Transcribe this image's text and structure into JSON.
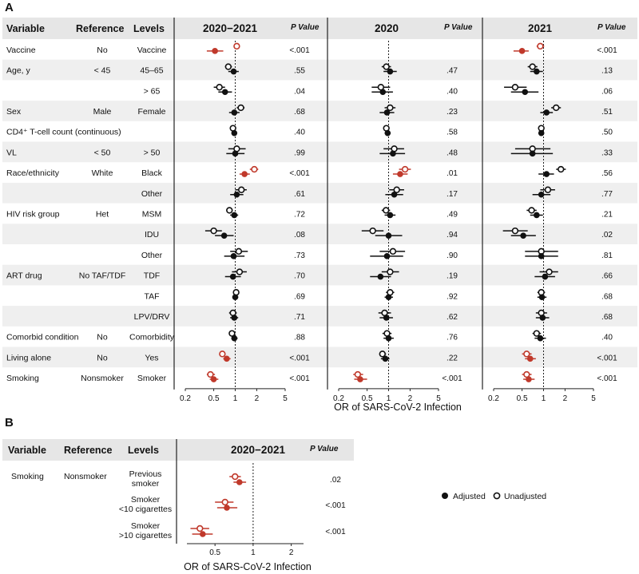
{
  "colors": {
    "significant": "#c0392b",
    "neutral": "#111111",
    "stripe": "#efefef",
    "header_bg": "#e6e6e6"
  },
  "panel_a": {
    "label": "A",
    "headers": {
      "variable": "Variable",
      "reference": "Reference",
      "levels": "Levels",
      "pvalue": "P Value"
    },
    "panel_titles": [
      "2020−2021",
      "2020",
      "2021"
    ],
    "x_axis_title": "OR of SARS-CoV-2 Infection",
    "rows": [
      {
        "variable": "Vaccine",
        "reference": "No",
        "level": "Vaccine",
        "highlight": true,
        "p": [
          "<.001",
          "",
          "<.001"
        ]
      },
      {
        "variable": "Age, y",
        "reference": "< 45",
        "level": "45–65",
        "highlight": false,
        "p": [
          ".55",
          ".47",
          ".13"
        ]
      },
      {
        "variable": "",
        "reference": "",
        "level": "> 65",
        "highlight": false,
        "p": [
          ".04",
          ".40",
          ".06"
        ]
      },
      {
        "variable": "Sex",
        "reference": "Male",
        "level": "Female",
        "highlight": false,
        "p": [
          ".68",
          ".23",
          ".51"
        ]
      },
      {
        "variable": "CD4⁺ T-cell count (continuous)",
        "reference": "",
        "level": "",
        "highlight": false,
        "p": [
          ".40",
          ".58",
          ".50"
        ]
      },
      {
        "variable": "VL",
        "reference": "< 50",
        "level": "> 50",
        "highlight": false,
        "p": [
          ".99",
          ".48",
          ".33"
        ]
      },
      {
        "variable": "Race/ethnicity",
        "reference": "White",
        "level": "Black",
        "highlight": true,
        "p": [
          "<.001",
          ".01",
          ".56"
        ]
      },
      {
        "variable": "",
        "reference": "",
        "level": "Other",
        "highlight": false,
        "p": [
          ".61",
          ".17",
          ".77"
        ]
      },
      {
        "variable": "HIV risk group",
        "reference": "Het",
        "level": "MSM",
        "highlight": false,
        "p": [
          ".72",
          ".49",
          ".21"
        ]
      },
      {
        "variable": "",
        "reference": "",
        "level": "IDU",
        "highlight": false,
        "p": [
          ".08",
          ".94",
          ".02"
        ]
      },
      {
        "variable": "",
        "reference": "",
        "level": "Other",
        "highlight": false,
        "p": [
          ".73",
          ".90",
          ".81"
        ]
      },
      {
        "variable": "ART drug",
        "reference": "No TAF/TDF",
        "level": "TDF",
        "highlight": false,
        "p": [
          ".70",
          ".19",
          ".66"
        ]
      },
      {
        "variable": "",
        "reference": "",
        "level": "TAF",
        "highlight": false,
        "p": [
          ".69",
          ".92",
          ".68"
        ]
      },
      {
        "variable": "",
        "reference": "",
        "level": "LPV/DRV",
        "highlight": false,
        "p": [
          ".71",
          ".62",
          ".68"
        ]
      },
      {
        "variable": "Comorbid condition",
        "reference": "No",
        "level": "Comorbidity",
        "highlight": false,
        "p": [
          ".88",
          ".76",
          ".40"
        ]
      },
      {
        "variable": "Living alone",
        "reference": "No",
        "level": "Yes",
        "highlight": true,
        "p": [
          "<.001",
          ".22",
          "<.001"
        ]
      },
      {
        "variable": "Smoking",
        "reference": "Nonsmoker",
        "level": "Smoker",
        "highlight": true,
        "p": [
          "<.001",
          "<.001",
          "<.001"
        ]
      }
    ]
  },
  "panel_b": {
    "label": "B",
    "headers": {
      "variable": "Variable",
      "reference": "Reference",
      "levels": "Levels",
      "pvalue": "P Value"
    },
    "panel_title": "2020−2021",
    "x_axis_title": "OR of SARS-CoV-2 Infection",
    "variable": "Smoking",
    "reference": "Nonsmoker",
    "rows": [
      {
        "level_lines": [
          "Previous",
          "smoker"
        ],
        "p": ".02"
      },
      {
        "level_lines": [
          "Smoker",
          "<10 cigarettes"
        ],
        "p": "<.001"
      },
      {
        "level_lines": [
          "Smoker",
          ">10 cigarettes"
        ],
        "p": "<.001"
      }
    ]
  },
  "legend": {
    "adjusted": "Adjusted",
    "unadjusted": "Unadjusted"
  },
  "chart_data": [
    {
      "type": "scatter",
      "subtype": "forest_plot",
      "title": "Panel A",
      "xlabel": "OR of SARS-CoV-2 Infection",
      "xscale": "log",
      "xlim": [
        0.2,
        5
      ],
      "xticks": [
        0.2,
        0.5,
        1,
        2,
        5
      ],
      "xtick_labels": [
        "0.2",
        "0.5",
        "1",
        "2",
        "5"
      ],
      "reference_line": 1,
      "categories": [
        "Vaccine",
        "Age 45–65",
        "Age >65",
        "Female",
        "CD4 count",
        "VL >50",
        "Black",
        "Race Other",
        "MSM",
        "IDU",
        "Risk Other",
        "TDF",
        "TAF",
        "LPV/DRV",
        "Comorbidity",
        "Living alone",
        "Smoker"
      ],
      "panels": [
        {
          "name": "2020−2021",
          "adjusted": [
            [
              0.52,
              0.4,
              0.68
            ],
            [
              0.95,
              0.8,
              1.12
            ],
            [
              0.72,
              0.58,
              0.9
            ],
            [
              0.97,
              0.82,
              1.15
            ],
            [
              0.97,
              0.9,
              1.05
            ],
            [
              1.0,
              0.75,
              1.35
            ],
            [
              1.35,
              1.15,
              1.6
            ],
            [
              1.05,
              0.85,
              1.3
            ],
            [
              0.97,
              0.85,
              1.1
            ],
            [
              0.7,
              0.52,
              0.95
            ],
            [
              0.95,
              0.7,
              1.35
            ],
            [
              0.93,
              0.72,
              1.2
            ],
            [
              1.0,
              0.92,
              1.1
            ],
            [
              0.97,
              0.85,
              1.1
            ],
            [
              0.97,
              0.88,
              1.08
            ],
            [
              0.76,
              0.68,
              0.86
            ],
            [
              0.5,
              0.44,
              0.58
            ]
          ],
          "unadjusted": [
            [
              1.05,
              0.95,
              1.15
            ],
            [
              0.8,
              0.72,
              0.9
            ],
            [
              0.6,
              0.5,
              0.72
            ],
            [
              1.2,
              1.05,
              1.35
            ],
            [
              0.93,
              0.88,
              0.98
            ],
            [
              1.05,
              0.8,
              1.4
            ],
            [
              1.85,
              1.6,
              2.1
            ],
            [
              1.22,
              1.0,
              1.45
            ],
            [
              0.83,
              0.75,
              0.92
            ],
            [
              0.5,
              0.38,
              0.65
            ],
            [
              1.12,
              0.85,
              1.5
            ],
            [
              1.15,
              0.9,
              1.45
            ],
            [
              1.03,
              0.95,
              1.12
            ],
            [
              0.93,
              0.82,
              1.05
            ],
            [
              0.9,
              0.82,
              0.98
            ],
            [
              0.66,
              0.6,
              0.73
            ],
            [
              0.45,
              0.4,
              0.52
            ]
          ]
        },
        {
          "name": "2020",
          "adjusted": [
            null,
            [
              1.05,
              0.85,
              1.3
            ],
            [
              0.83,
              0.58,
              1.15
            ],
            [
              0.95,
              0.75,
              1.2
            ],
            [
              0.97,
              0.88,
              1.07
            ],
            [
              1.15,
              0.75,
              1.7
            ],
            [
              1.45,
              1.15,
              1.85
            ],
            [
              1.2,
              0.9,
              1.6
            ],
            [
              1.05,
              0.88,
              1.25
            ],
            [
              1.0,
              0.65,
              1.55
            ],
            [
              0.95,
              0.55,
              1.6
            ],
            [
              0.77,
              0.55,
              1.08
            ],
            [
              1.0,
              0.88,
              1.15
            ],
            [
              0.93,
              0.75,
              1.15
            ],
            [
              1.0,
              0.85,
              1.18
            ],
            [
              0.9,
              0.78,
              1.03
            ],
            [
              0.4,
              0.33,
              0.5
            ]
          ],
          "unadjusted": [
            null,
            [
              0.93,
              0.8,
              1.08
            ],
            [
              0.78,
              0.58,
              1.05
            ],
            [
              1.05,
              0.88,
              1.25
            ],
            [
              0.93,
              0.88,
              0.98
            ],
            [
              1.2,
              0.85,
              1.65
            ],
            [
              1.7,
              1.4,
              2.05
            ],
            [
              1.3,
              1.02,
              1.65
            ],
            [
              0.92,
              0.8,
              1.05
            ],
            [
              0.6,
              0.42,
              0.85
            ],
            [
              1.15,
              0.75,
              1.7
            ],
            [
              1.05,
              0.8,
              1.4
            ],
            [
              1.05,
              0.92,
              1.2
            ],
            [
              0.88,
              0.72,
              1.08
            ],
            [
              0.95,
              0.82,
              1.1
            ],
            [
              0.82,
              0.74,
              0.92
            ],
            [
              0.37,
              0.32,
              0.44
            ]
          ]
        },
        {
          "name": "2021",
          "adjusted": [
            [
              0.5,
              0.38,
              0.62
            ],
            [
              0.8,
              0.65,
              0.98
            ],
            [
              0.55,
              0.35,
              0.85
            ],
            [
              1.1,
              0.9,
              1.35
            ],
            [
              0.93,
              0.85,
              1.02
            ],
            [
              0.7,
              0.35,
              1.35
            ],
            [
              1.1,
              0.85,
              1.4
            ],
            [
              0.93,
              0.7,
              1.25
            ],
            [
              0.8,
              0.65,
              0.98
            ],
            [
              0.52,
              0.35,
              0.78
            ],
            [
              0.93,
              0.55,
              1.6
            ],
            [
              1.05,
              0.75,
              1.45
            ],
            [
              0.95,
              0.82,
              1.1
            ],
            [
              0.97,
              0.78,
              1.2
            ],
            [
              0.9,
              0.75,
              1.08
            ],
            [
              0.65,
              0.55,
              0.78
            ],
            [
              0.62,
              0.52,
              0.75
            ]
          ],
          "unadjusted": [
            [
              0.9,
              0.8,
              1.02
            ],
            [
              0.7,
              0.6,
              0.82
            ],
            [
              0.4,
              0.28,
              0.58
            ],
            [
              1.5,
              1.28,
              1.75
            ],
            [
              0.93,
              0.88,
              0.98
            ],
            [
              0.7,
              0.4,
              1.25
            ],
            [
              1.75,
              1.5,
              2.05
            ],
            [
              1.15,
              0.9,
              1.45
            ],
            [
              0.68,
              0.58,
              0.8
            ],
            [
              0.4,
              0.27,
              0.6
            ],
            [
              0.93,
              0.55,
              1.6
            ],
            [
              1.2,
              0.88,
              1.6
            ],
            [
              0.93,
              0.82,
              1.05
            ],
            [
              0.93,
              0.78,
              1.12
            ],
            [
              0.8,
              0.7,
              0.92
            ],
            [
              0.58,
              0.5,
              0.68
            ],
            [
              0.58,
              0.5,
              0.68
            ]
          ]
        }
      ]
    },
    {
      "type": "scatter",
      "subtype": "forest_plot",
      "title": "Panel B — 2020−2021",
      "xlabel": "OR of SARS-CoV-2 Infection",
      "xscale": "log",
      "xlim": [
        0.3,
        2.5
      ],
      "xticks": [
        0.5,
        1,
        2
      ],
      "xtick_labels": [
        "0.5",
        "1",
        "2"
      ],
      "reference_line": 1,
      "categories": [
        "Previous smoker",
        "Smoker <10 cigarettes",
        "Smoker >10 cigarettes"
      ],
      "adjusted": [
        [
          0.78,
          0.7,
          0.88
        ],
        [
          0.62,
          0.52,
          0.75
        ],
        [
          0.4,
          0.33,
          0.48
        ]
      ],
      "unadjusted": [
        [
          0.72,
          0.65,
          0.8
        ],
        [
          0.6,
          0.5,
          0.7
        ],
        [
          0.38,
          0.32,
          0.45
        ]
      ]
    }
  ]
}
